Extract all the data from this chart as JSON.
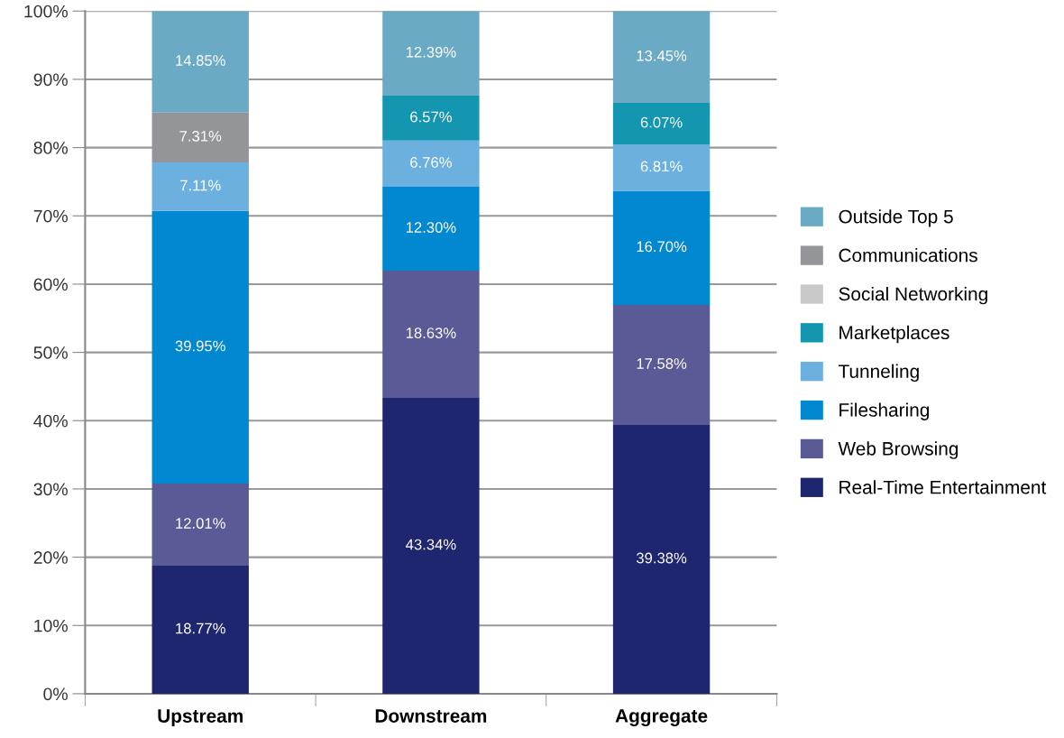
{
  "chart_data": {
    "type": "bar",
    "stacked": true,
    "categories": [
      "Upstream",
      "Downstream",
      "Aggregate"
    ],
    "series": [
      {
        "name": "Real-Time Entertainment",
        "color": "#1f2670",
        "values": [
          18.77,
          43.34,
          39.38
        ],
        "value_labels": [
          "18.77%",
          "43.34%",
          "39.38%"
        ]
      },
      {
        "name": "Web Browsing",
        "color": "#5a5a96",
        "values": [
          12.01,
          18.63,
          17.58
        ],
        "value_labels": [
          "12.01%",
          "18.63%",
          "17.58%"
        ]
      },
      {
        "name": "Filesharing",
        "color": "#0288d1",
        "values": [
          39.95,
          12.3,
          16.7
        ],
        "value_labels": [
          "39.95%",
          "12.30%",
          "16.70%"
        ]
      },
      {
        "name": "Tunneling",
        "color": "#6cb0e0",
        "values": [
          7.11,
          6.76,
          6.81
        ],
        "value_labels": [
          "7.11%",
          "6.76%",
          "6.81%"
        ]
      },
      {
        "name": "Marketplaces",
        "color": "#1596b0",
        "values": [
          null,
          6.57,
          6.07
        ],
        "value_labels": [
          null,
          "6.57%",
          "6.07%"
        ]
      },
      {
        "name": "Social Networking",
        "color": "#c8c8c8",
        "values": [
          null,
          null,
          null
        ]
      },
      {
        "name": "Communications",
        "color": "#939598",
        "values": [
          7.31,
          null,
          null
        ],
        "value_labels": [
          "7.31%",
          null,
          null
        ]
      },
      {
        "name": "Outside Top 5",
        "color": "#6aaac4",
        "values": [
          14.85,
          12.39,
          13.45
        ],
        "value_labels": [
          "14.85%",
          "12.39%",
          "13.45%"
        ]
      }
    ],
    "ylim": [
      0,
      100
    ],
    "yticks": [
      {
        "value": 0,
        "label": "0%"
      },
      {
        "value": 10,
        "label": "10%"
      },
      {
        "value": 20,
        "label": "20%"
      },
      {
        "value": 30,
        "label": "30%"
      },
      {
        "value": 40,
        "label": "40%"
      },
      {
        "value": 50,
        "label": "50%"
      },
      {
        "value": 60,
        "label": "60%"
      },
      {
        "value": 70,
        "label": "70%"
      },
      {
        "value": 80,
        "label": "80%"
      },
      {
        "value": 90,
        "label": "90%"
      },
      {
        "value": 100,
        "label": "100%"
      }
    ],
    "grid": "y",
    "legend": "right"
  }
}
